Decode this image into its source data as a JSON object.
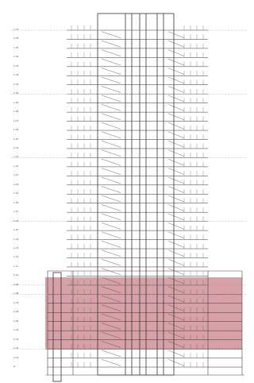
{
  "drawing": {
    "title": "",
    "floor_count": 37,
    "podium_floor_count": 8,
    "highlight_color": "#c98289",
    "line_color": "#333333",
    "datum_color": "#9aa7b5"
  },
  "levels": [
    {
      "label": "L.37"
    },
    {
      "label": "L.36"
    },
    {
      "label": "L.35"
    },
    {
      "label": "L.34"
    },
    {
      "label": "L.33"
    },
    {
      "label": "L.32"
    },
    {
      "label": "L.31"
    },
    {
      "label": "L.30"
    },
    {
      "label": "L.29"
    },
    {
      "label": "L.28"
    },
    {
      "label": "L.27"
    },
    {
      "label": "L.26"
    },
    {
      "label": "L.25"
    },
    {
      "label": "L.24"
    },
    {
      "label": "L.23"
    },
    {
      "label": "L.22"
    },
    {
      "label": "L.21"
    },
    {
      "label": "L.20"
    },
    {
      "label": "L.19"
    },
    {
      "label": "L.18"
    },
    {
      "label": "L.17"
    },
    {
      "label": "L.16"
    },
    {
      "label": "L.15"
    },
    {
      "label": "L.14"
    },
    {
      "label": "L.13"
    },
    {
      "label": "L.12"
    },
    {
      "label": "L.11"
    },
    {
      "label": "L.10"
    },
    {
      "label": "L.09"
    },
    {
      "label": "L.08"
    },
    {
      "label": "L.07"
    },
    {
      "label": "L.06"
    },
    {
      "label": "L.05"
    },
    {
      "label": "L.04"
    },
    {
      "label": "L.03"
    },
    {
      "label": "L.02"
    },
    {
      "label": "L.01"
    },
    {
      "label": "G"
    }
  ]
}
